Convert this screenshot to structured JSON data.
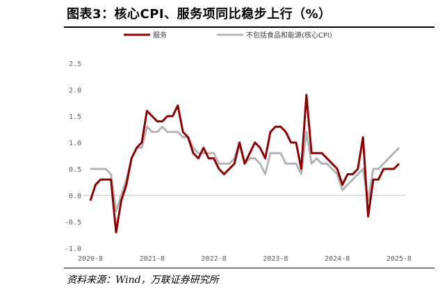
{
  "header": {
    "title": "图表3：核心CPI、服务项同比稳步上行（%）"
  },
  "footer": {
    "source": "资料来源：Wind，万联证券研究所"
  },
  "chart_data": {
    "type": "line",
    "title": "图表3：核心CPI、服务项同比稳步上行（%）",
    "ylim": [
      -1.0,
      2.5
    ],
    "yticks": [
      "-1.0",
      "-0.5",
      "0.0",
      "0.5",
      "1.0",
      "1.5",
      "2.0",
      "2.5"
    ],
    "xtick_labels": [
      "2020-8",
      "2021-8",
      "2022-8",
      "2023-8",
      "2024-8",
      "2025-8"
    ],
    "x_start": "2020-08",
    "x_end": "2025-08",
    "legend_position": "top",
    "grid": false,
    "series": [
      {
        "name": "服务",
        "color": "#8b0000",
        "values": [
          -0.1,
          0.2,
          0.3,
          0.3,
          0.3,
          -0.7,
          -0.1,
          0.2,
          0.7,
          0.9,
          1.0,
          1.6,
          1.5,
          1.4,
          1.4,
          1.5,
          1.5,
          1.7,
          1.2,
          1.1,
          0.8,
          0.7,
          0.9,
          0.7,
          0.7,
          0.5,
          0.4,
          0.5,
          0.6,
          1.0,
          0.6,
          0.8,
          1.0,
          0.9,
          0.7,
          1.2,
          1.3,
          1.3,
          1.2,
          1.0,
          1.0,
          0.5,
          1.9,
          0.8,
          0.8,
          0.8,
          0.7,
          0.6,
          0.5,
          0.2,
          0.4,
          0.4,
          0.5,
          1.1,
          -0.4,
          0.3,
          0.3,
          0.5,
          0.5,
          0.5,
          0.6
        ]
      },
      {
        "name": "不包括食品和能源(核心CPI)",
        "color": "#b4b4b4",
        "values": [
          0.5,
          0.5,
          0.5,
          0.5,
          0.4,
          -0.3,
          0.0,
          0.3,
          0.7,
          0.9,
          0.9,
          1.3,
          1.2,
          1.2,
          1.3,
          1.2,
          1.2,
          1.2,
          1.1,
          1.1,
          0.9,
          0.8,
          0.8,
          0.8,
          0.8,
          0.6,
          0.6,
          0.6,
          0.7,
          1.0,
          0.6,
          0.7,
          0.7,
          0.6,
          0.4,
          0.8,
          0.8,
          0.8,
          0.6,
          0.6,
          0.6,
          0.4,
          1.2,
          0.6,
          0.7,
          0.6,
          0.6,
          0.5,
          0.4,
          0.1,
          0.2,
          0.3,
          0.4,
          0.5,
          -0.1,
          0.5,
          0.5,
          0.6,
          0.7,
          0.8,
          0.9
        ]
      }
    ]
  }
}
